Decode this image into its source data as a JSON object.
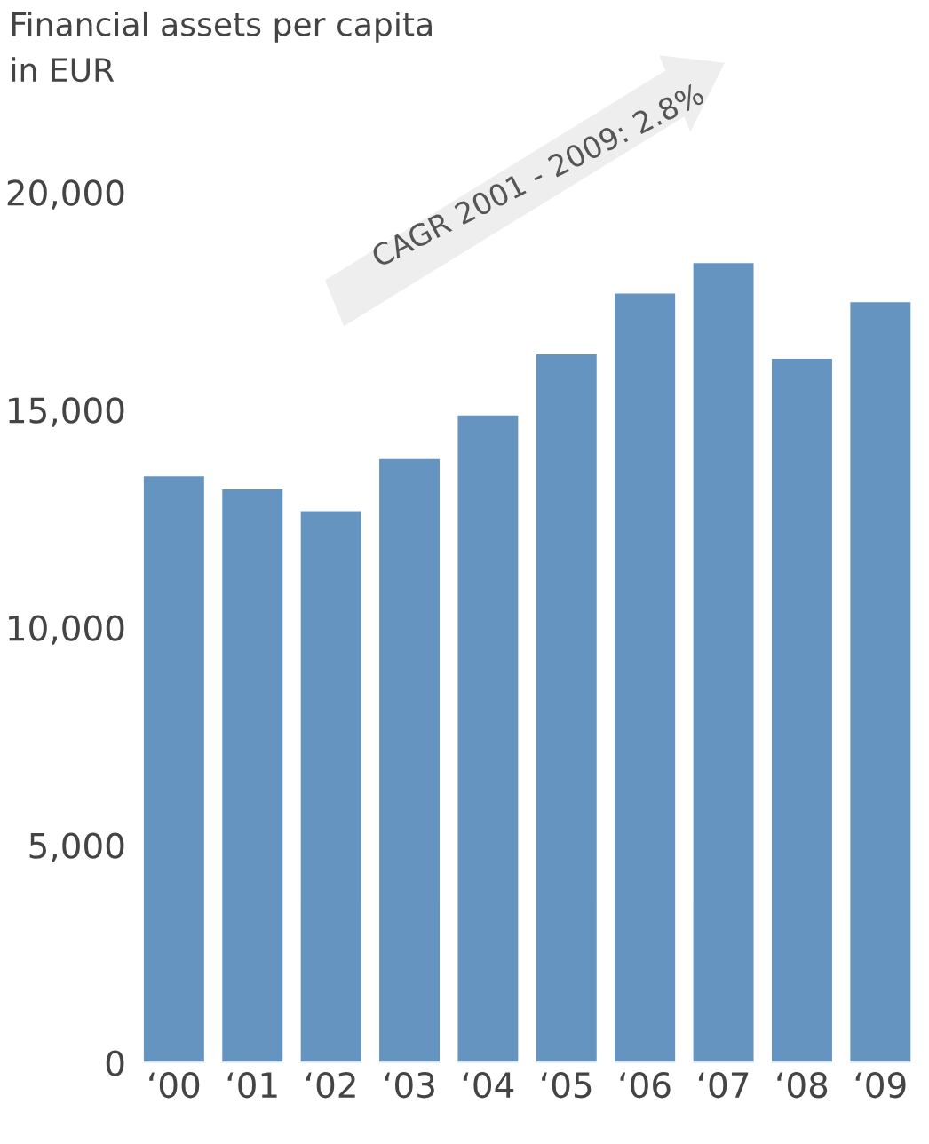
{
  "chart_data": {
    "type": "bar",
    "title": "Financial assets per capita\nin EUR",
    "categories": [
      "‘00",
      "‘01",
      "‘02",
      "‘03",
      "‘04",
      "‘05",
      "‘06",
      "‘07",
      "‘08",
      "‘09"
    ],
    "values": [
      13500,
      13200,
      12700,
      13900,
      14900,
      16300,
      17700,
      18400,
      16200,
      17500
    ],
    "color": "#6694c1",
    "ylim": [
      0,
      20000
    ],
    "yticks": [
      0,
      {
        "value": 5000,
        "label": "5,000"
      },
      {
        "value": 10000,
        "label": "10,000"
      },
      {
        "value": 15000,
        "label": "15,000"
      },
      {
        "value": 20000,
        "label": "20,000"
      }
    ],
    "annotations": [
      "CAGR 2001 - 2009: 2.8%"
    ],
    "grid": false,
    "legend": false
  }
}
